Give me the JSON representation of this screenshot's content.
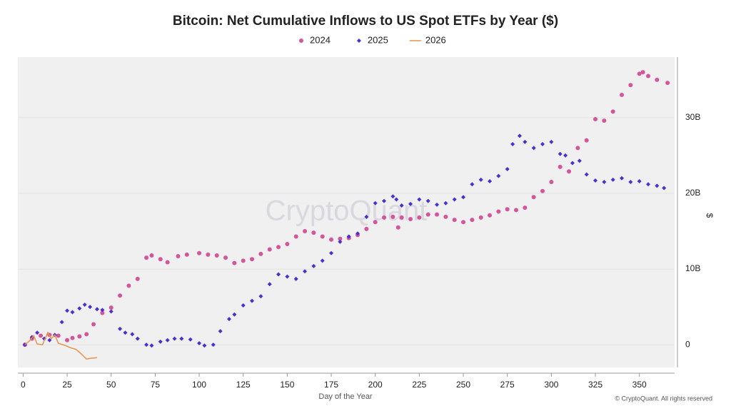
{
  "chart_data": {
    "type": "scatter",
    "title": "Bitcoin: Net Cumulative Inflows to US Spot ETFs by Year ($)",
    "x_label": "Day of the Year",
    "y_label": "$",
    "watermark": "CryptoQuant",
    "credit": "© CryptoQuant. All rights reserved",
    "xlim": [
      -3,
      370
    ],
    "ylim": [
      -3,
      38
    ],
    "xticks": [
      0,
      25,
      50,
      75,
      100,
      125,
      150,
      175,
      200,
      225,
      250,
      275,
      300,
      325,
      350
    ],
    "yticks": [
      0,
      {
        "value": 10,
        "label": "10B"
      },
      {
        "value": 20,
        "label": "20B"
      },
      {
        "value": 30,
        "label": "30B"
      }
    ],
    "grid": true,
    "legend": "top",
    "series": [
      {
        "name": "2024",
        "color": "#d4559a",
        "mode": "markers",
        "marker": "circle",
        "x": [
          1,
          5,
          10,
          15,
          20,
          25,
          28,
          32,
          36,
          40,
          45,
          50,
          55,
          60,
          65,
          70,
          73,
          78,
          82,
          88,
          93,
          100,
          105,
          110,
          115,
          120,
          125,
          130,
          135,
          140,
          145,
          150,
          155,
          160,
          165,
          170,
          175,
          180,
          185,
          190,
          195,
          200,
          205,
          210,
          213,
          215,
          220,
          225,
          230,
          235,
          240,
          245,
          250,
          255,
          260,
          265,
          270,
          275,
          280,
          285,
          290,
          295,
          300,
          305,
          310,
          315,
          320,
          325,
          330,
          335,
          340,
          345,
          350,
          352,
          355,
          360,
          366
        ],
        "values": [
          0,
          0.8,
          1.2,
          1.3,
          1.2,
          0.6,
          0.9,
          1.1,
          1.4,
          2.7,
          4.2,
          4.9,
          6.5,
          7.8,
          8.7,
          11.5,
          11.8,
          11.3,
          10.9,
          11.7,
          11.9,
          12.1,
          11.9,
          11.8,
          11.5,
          10.8,
          11.1,
          11.3,
          12.0,
          12.6,
          12.9,
          13.3,
          14.3,
          15.0,
          14.8,
          14.3,
          13.9,
          14.0,
          14.1,
          14.5,
          15.3,
          16.2,
          16.8,
          16.9,
          15.5,
          16.8,
          16.6,
          16.8,
          17.2,
          17.2,
          16.9,
          16.5,
          16.2,
          16.5,
          16.8,
          17.1,
          17.6,
          17.9,
          17.8,
          18.1,
          19.5,
          20.3,
          21.5,
          23.5,
          22.9,
          26.0,
          27.0,
          29.8,
          29.6,
          30.8,
          33.0,
          34.3,
          35.8,
          36.0,
          35.5,
          35.0,
          34.6
        ]
      },
      {
        "name": "2025",
        "color": "#4b2fd1",
        "mode": "markers",
        "marker": "diamond",
        "x": [
          1,
          5,
          8,
          12,
          15,
          18,
          22,
          25,
          28,
          32,
          35,
          38,
          42,
          45,
          50,
          55,
          58,
          62,
          65,
          70,
          73,
          78,
          82,
          86,
          90,
          95,
          100,
          103,
          108,
          112,
          117,
          120,
          125,
          130,
          135,
          140,
          145,
          150,
          155,
          160,
          165,
          170,
          175,
          180,
          185,
          190,
          195,
          200,
          205,
          210,
          212,
          215,
          220,
          225,
          230,
          235,
          240,
          245,
          250,
          255,
          260,
          265,
          270,
          275,
          278,
          282,
          285,
          290,
          295,
          300,
          305,
          308,
          312,
          316,
          320,
          325,
          330,
          335,
          340,
          345,
          350,
          355,
          360,
          364
        ],
        "values": [
          0,
          1,
          1.6,
          0.8,
          0.6,
          1.3,
          3.0,
          4.5,
          4.3,
          4.8,
          5.3,
          5.0,
          4.7,
          4.6,
          4.4,
          2.1,
          1.6,
          1.4,
          0.8,
          0.0,
          -0.1,
          0.4,
          0.6,
          0.8,
          0.8,
          0.7,
          0.2,
          -0.1,
          0.0,
          1.8,
          3.4,
          4.0,
          5.2,
          5.8,
          6.4,
          8.0,
          9.3,
          9.0,
          8.7,
          9.7,
          10.4,
          11.1,
          12.1,
          13.6,
          14.3,
          14.7,
          16.9,
          18.7,
          19.0,
          19.6,
          19.2,
          18.4,
          18.6,
          19.2,
          19.0,
          18.5,
          18.7,
          19.2,
          19.5,
          21.2,
          21.8,
          21.6,
          22.3,
          23.2,
          26.5,
          27.6,
          26.8,
          26.0,
          26.5,
          26.8,
          25.2,
          25.0,
          24.0,
          24.3,
          22.5,
          21.7,
          21.5,
          21.8,
          22.0,
          21.5,
          21.6,
          21.2,
          21.0,
          20.7
        ]
      },
      {
        "name": "2026",
        "color": "#e8924a",
        "mode": "line",
        "x": [
          1,
          4,
          6,
          8,
          11,
          14,
          16,
          18,
          20,
          24,
          27,
          30,
          33,
          36,
          38,
          42
        ],
        "values": [
          0,
          0.6,
          1.2,
          0.1,
          0.0,
          1.6,
          0.8,
          1.3,
          0.2,
          -0.1,
          -0.4,
          -0.6,
          -1.2,
          -1.9,
          -1.8,
          -1.7
        ]
      }
    ]
  }
}
